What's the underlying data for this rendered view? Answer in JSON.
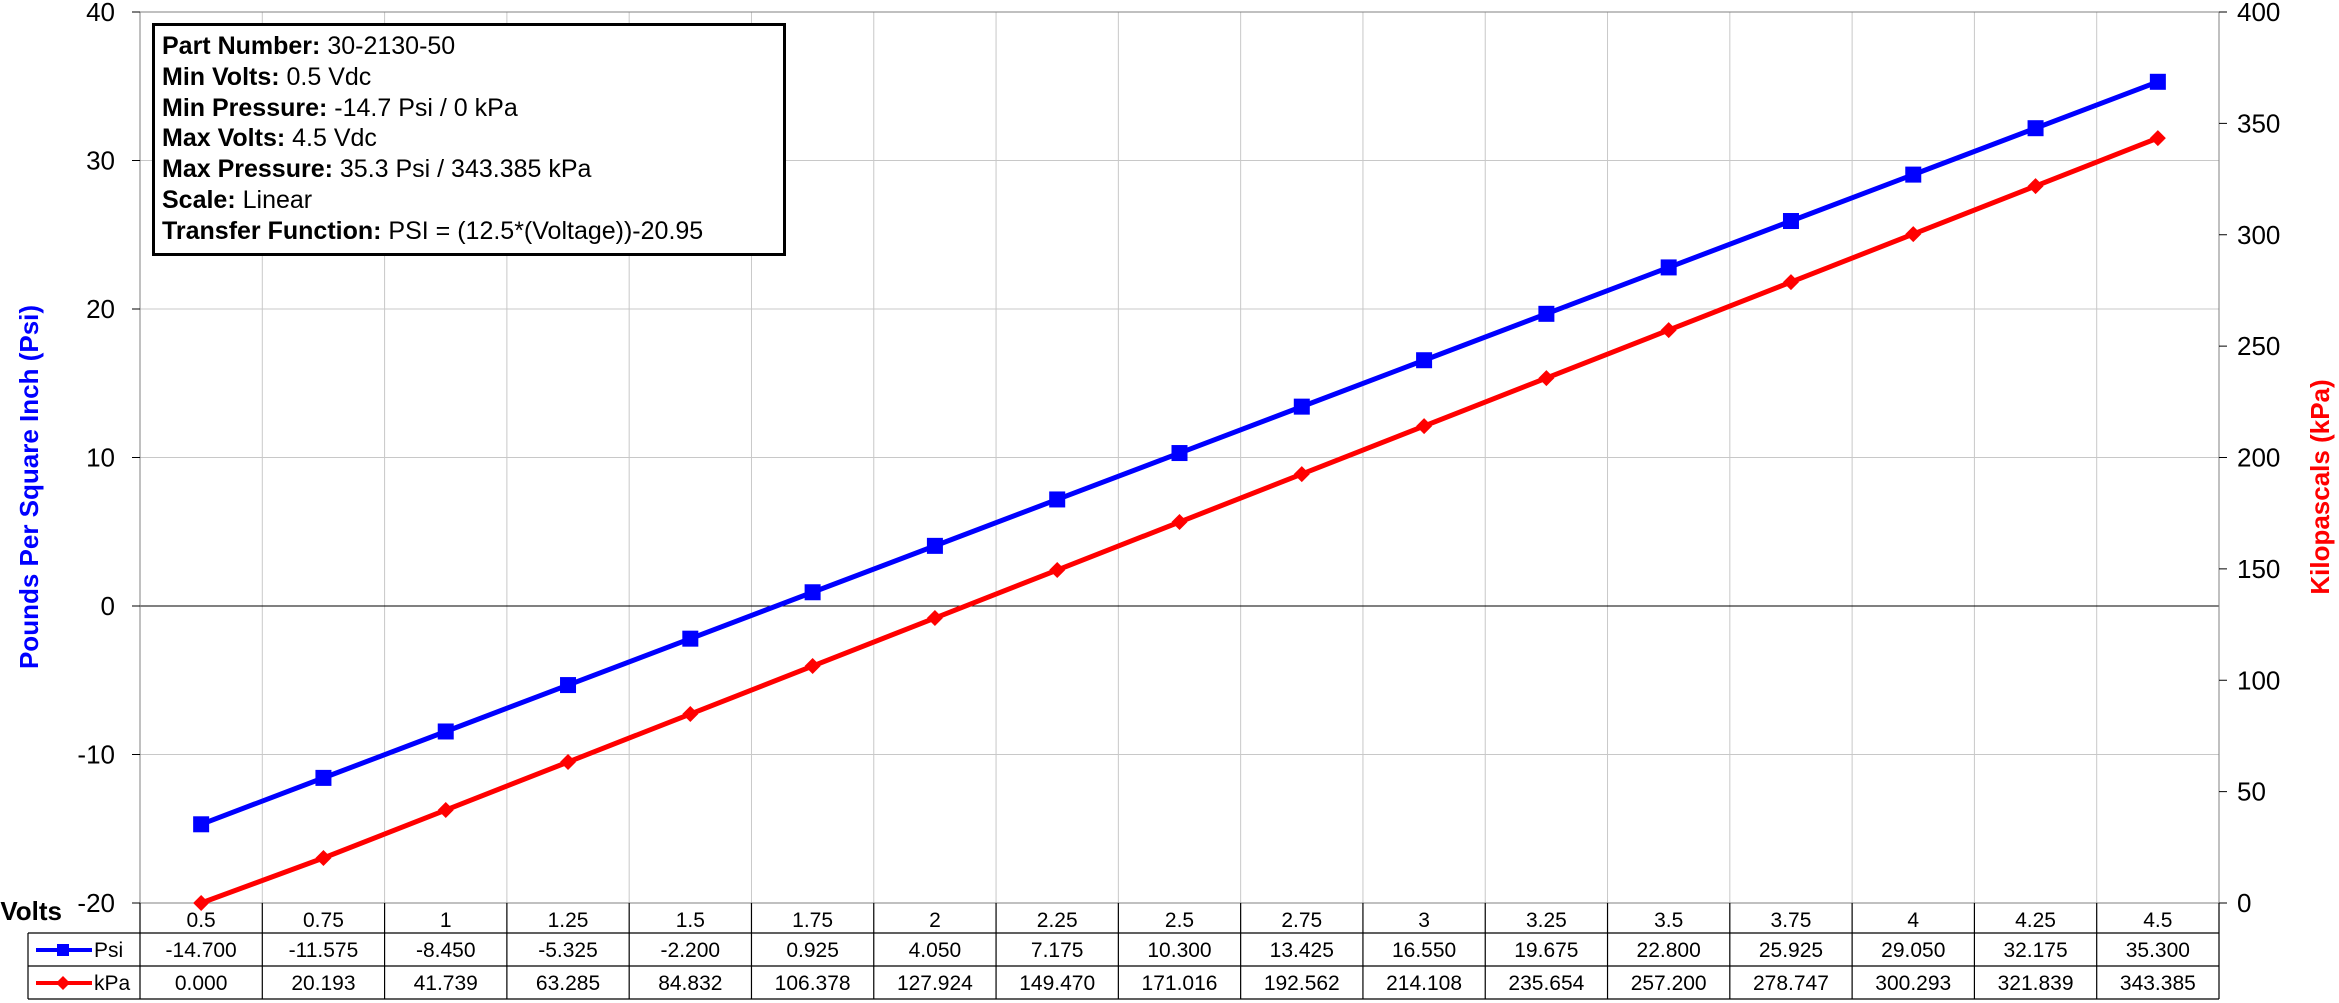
{
  "info_box": [
    {
      "label": "Part Number:",
      "value": "30-2130-50"
    },
    {
      "label": "Min Volts:",
      "value": "0.5 Vdc"
    },
    {
      "label": "Min Pressure:",
      "value": "-14.7 Psi / 0 kPa"
    },
    {
      "label": "Max Volts:",
      "value": "4.5 Vdc"
    },
    {
      "label": "Max Pressure:",
      "value": "35.3 Psi / 343.385 kPa"
    },
    {
      "label": "Scale:",
      "value": "Linear"
    },
    {
      "label": "Transfer Function:",
      "value": "PSI = (12.5*(Voltage))-20.95"
    }
  ],
  "chart_data": {
    "type": "line",
    "xlabel": "Volts",
    "ylabel_left": "Pounds Per Square Inch (Psi)",
    "ylabel_right": "Kilopascals (kPa)",
    "ylim_left": [
      -20,
      40
    ],
    "ylim_right": [
      0,
      400
    ],
    "yticks_left": [
      "-20",
      "-10",
      "0",
      "10",
      "20",
      "30",
      "40"
    ],
    "yticks_right": [
      "0",
      "50",
      "100",
      "150",
      "200",
      "250",
      "300",
      "350",
      "400"
    ],
    "grid": true,
    "categories": [
      "0.5",
      "0.75",
      "1",
      "1.25",
      "1.5",
      "1.75",
      "2",
      "2.25",
      "2.5",
      "2.75",
      "3",
      "3.25",
      "3.5",
      "3.75",
      "4",
      "4.25",
      "4.5"
    ],
    "series": [
      {
        "name": "Psi",
        "axis": "left",
        "color": "#0000ff",
        "marker": "square",
        "values": [
          -14.7,
          -11.575,
          -8.45,
          -5.325,
          -2.2,
          0.925,
          4.05,
          7.175,
          10.3,
          13.425,
          16.55,
          19.675,
          22.8,
          25.925,
          29.05,
          32.175,
          35.3
        ],
        "labels": [
          "-14.700",
          "-11.575",
          "-8.450",
          "-5.325",
          "-2.200",
          "0.925",
          "4.050",
          "7.175",
          "10.300",
          "13.425",
          "16.550",
          "19.675",
          "22.800",
          "25.925",
          "29.050",
          "32.175",
          "35.300"
        ]
      },
      {
        "name": "kPa",
        "axis": "right",
        "color": "#ff0000",
        "marker": "diamond",
        "values": [
          0,
          20.193,
          41.739,
          63.285,
          84.832,
          106.378,
          127.924,
          149.47,
          171.016,
          192.562,
          214.108,
          235.654,
          257.2,
          278.747,
          300.293,
          321.839,
          343.385
        ],
        "labels": [
          "0.000",
          "20.193",
          "41.739",
          "63.285",
          "84.832",
          "106.378",
          "127.924",
          "149.470",
          "171.016",
          "192.562",
          "214.108",
          "235.654",
          "257.200",
          "278.747",
          "300.293",
          "321.839",
          "343.385"
        ]
      }
    ]
  }
}
